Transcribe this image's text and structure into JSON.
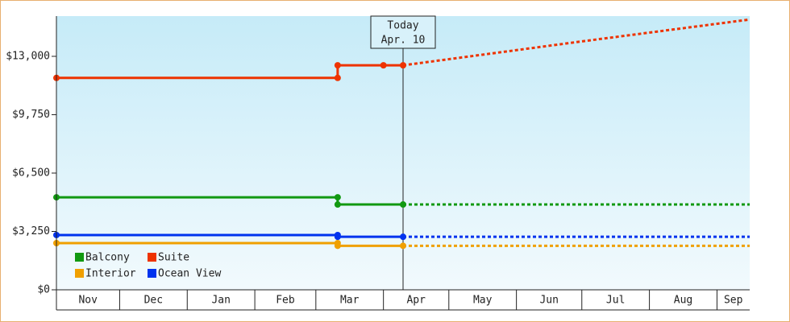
{
  "chart_data": {
    "type": "line",
    "xlim": [
      1,
      319
    ],
    "ylim": [
      0,
      15240
    ],
    "xticks": [
      {
        "value": 0,
        "label": "Nov"
      },
      {
        "value": 30,
        "label": "Dec"
      },
      {
        "value": 61,
        "label": "Jan"
      },
      {
        "value": 92,
        "label": "Feb"
      },
      {
        "value": 120,
        "label": "Mar"
      },
      {
        "value": 151,
        "label": "Apr"
      },
      {
        "value": 181,
        "label": "May"
      },
      {
        "value": 212,
        "label": "Jun"
      },
      {
        "value": 242,
        "label": "Jul"
      },
      {
        "value": 273,
        "label": "Aug"
      },
      {
        "value": 304,
        "label": "Sep"
      }
    ],
    "yticks": [
      {
        "value": 0,
        "label": "$0"
      },
      {
        "value": 3250,
        "label": "$3,250"
      },
      {
        "value": 6500,
        "label": "$6,500"
      },
      {
        "value": 9750,
        "label": "$9,750"
      },
      {
        "value": 13000,
        "label": "$13,000"
      }
    ],
    "today": {
      "x": 160,
      "label": [
        "Today",
        "Apr. 10"
      ]
    },
    "series": [
      {
        "name": "Balcony",
        "color": "#119911",
        "x": [
          1,
          130,
          130,
          160,
          319
        ],
        "values": [
          5150,
          5150,
          4750,
          4750,
          4750
        ]
      },
      {
        "name": "Suite",
        "color": "#ee3300",
        "x": [
          1,
          130,
          130,
          151,
          160,
          240,
          319
        ],
        "values": [
          11800,
          11800,
          12500,
          12500,
          12500,
          13800,
          15050
        ]
      },
      {
        "name": "Interior",
        "color": "#f0a000",
        "x": [
          1,
          130,
          130,
          160,
          319
        ],
        "values": [
          2600,
          2600,
          2450,
          2450,
          2450
        ]
      },
      {
        "name": "Ocean View",
        "color": "#0033ee",
        "x": [
          1,
          130,
          130,
          160,
          319
        ],
        "values": [
          3050,
          3050,
          2950,
          2950,
          2950
        ]
      }
    ]
  }
}
